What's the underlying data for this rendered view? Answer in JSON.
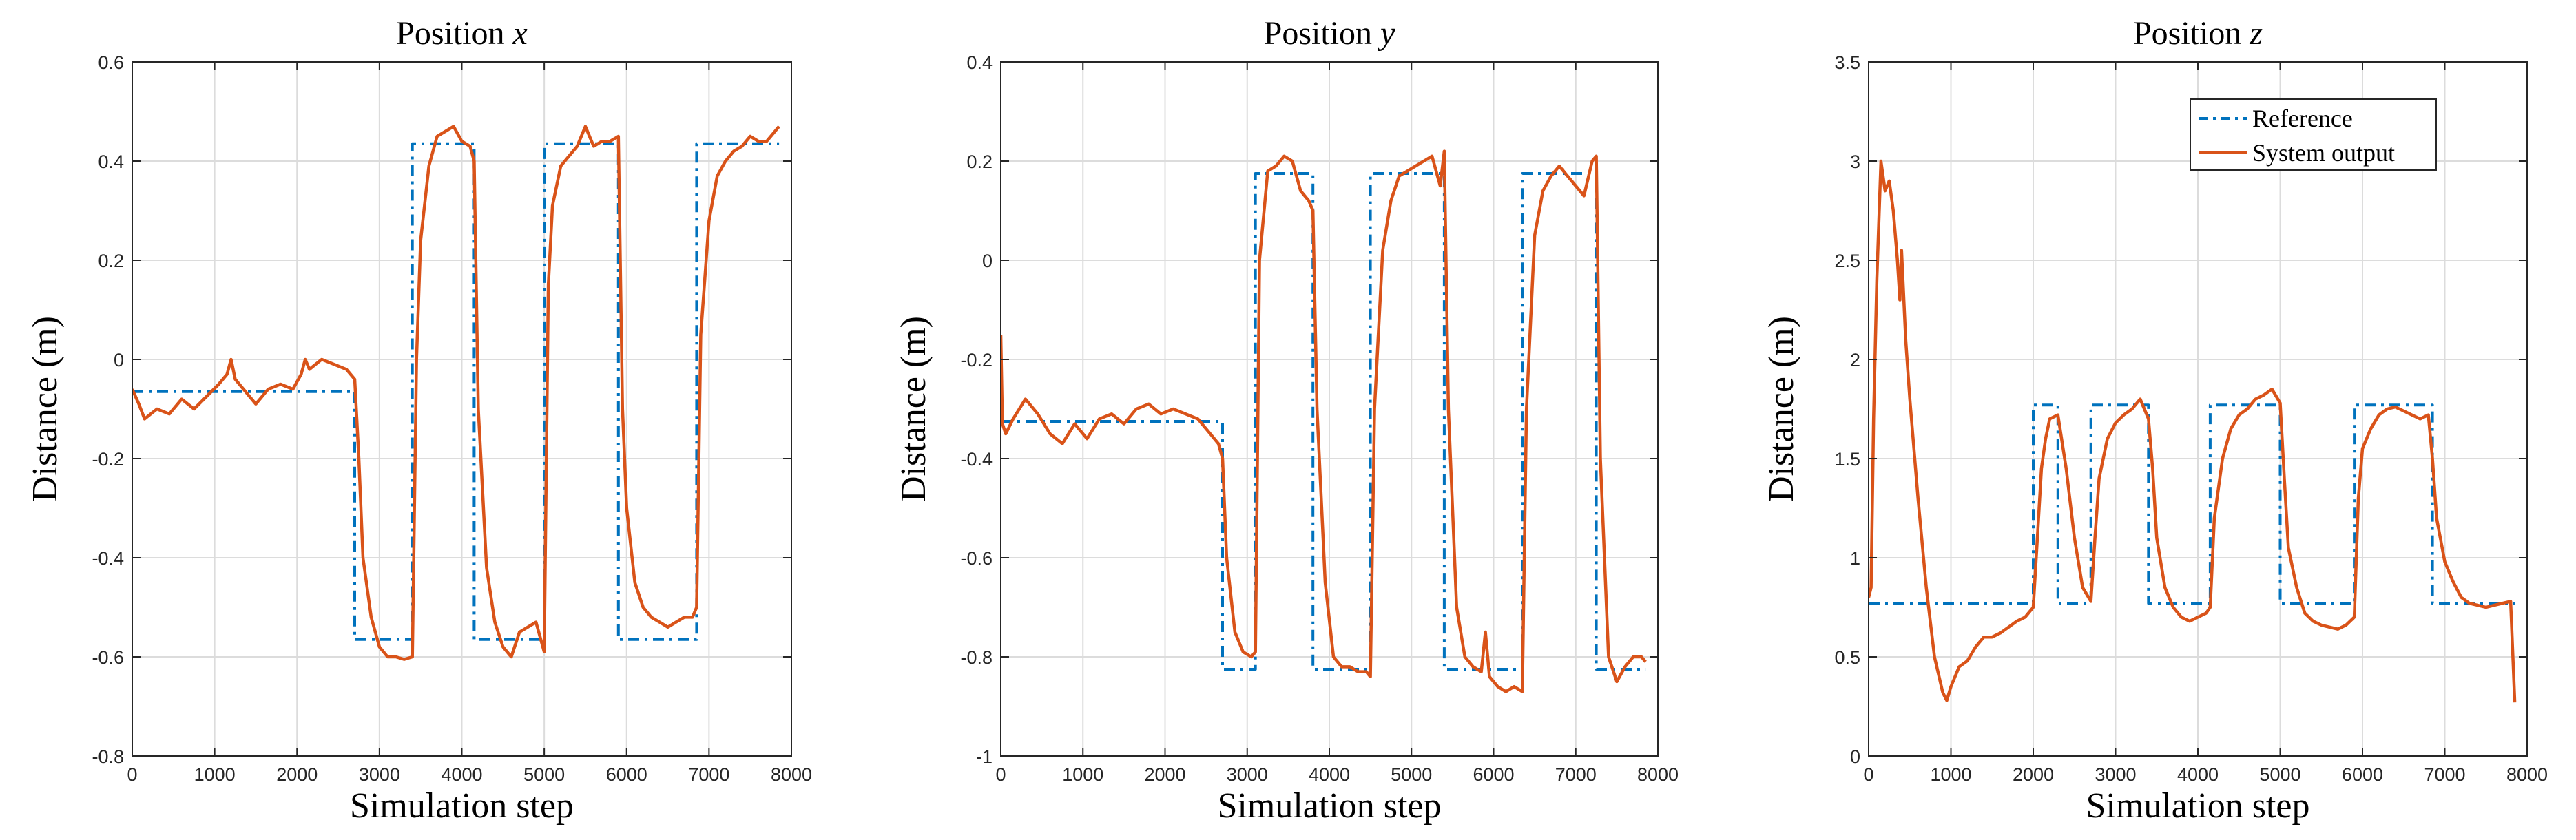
{
  "colors": {
    "reference": "#0072BD",
    "output": "#D95319",
    "grid": "#dcdcdc",
    "axis": "#262626"
  },
  "legend": {
    "placement": "top-right",
    "chart_index": 2
  },
  "chart_data": [
    {
      "type": "line",
      "title_main": "Position ",
      "title_var": "x",
      "xlabel": "Simulation step",
      "ylabel": "Distance (m)",
      "xlim": [
        0,
        8000
      ],
      "ylim": [
        -0.8,
        0.6
      ],
      "xticks": [
        0,
        1000,
        2000,
        3000,
        4000,
        5000,
        6000,
        7000,
        8000
      ],
      "yticks": [
        -0.8,
        -0.6,
        -0.4,
        -0.2,
        0,
        0.2,
        0.4,
        0.6
      ],
      "ytick_labels": [
        "-0.8",
        "-0.6",
        "-0.4",
        "-0.2",
        "0",
        "0.2",
        "0.4",
        "0.6"
      ],
      "grid": true,
      "series": [
        {
          "name": "Reference",
          "style": "dashdot",
          "x": [
            0,
            2700,
            2700,
            3400,
            3400,
            4150,
            4150,
            5000,
            5000,
            5900,
            5900,
            6850,
            6850,
            7850
          ],
          "y": [
            -0.065,
            -0.065,
            -0.565,
            -0.565,
            0.435,
            0.435,
            -0.565,
            -0.565,
            0.435,
            0.435,
            -0.565,
            -0.565,
            0.435,
            0.435
          ]
        },
        {
          "name": "System output",
          "style": "solid",
          "x": [
            0,
            80,
            150,
            300,
            450,
            600,
            750,
            900,
            1050,
            1150,
            1200,
            1250,
            1350,
            1500,
            1650,
            1800,
            1950,
            2050,
            2100,
            2150,
            2300,
            2450,
            2600,
            2700,
            2750,
            2800,
            2900,
            3000,
            3100,
            3200,
            3300,
            3400,
            3450,
            3500,
            3600,
            3700,
            3800,
            3900,
            4000,
            4100,
            4150,
            4200,
            4300,
            4400,
            4500,
            4600,
            4700,
            4800,
            4900,
            5000,
            5050,
            5100,
            5200,
            5300,
            5400,
            5500,
            5600,
            5700,
            5800,
            5900,
            5950,
            6000,
            6100,
            6200,
            6300,
            6400,
            6500,
            6600,
            6700,
            6800,
            6850,
            6900,
            7000,
            7100,
            7200,
            7300,
            7400,
            7500,
            7600,
            7700,
            7800,
            7850
          ],
          "y": [
            -0.06,
            -0.09,
            -0.12,
            -0.1,
            -0.11,
            -0.08,
            -0.1,
            -0.075,
            -0.05,
            -0.03,
            0.0,
            -0.04,
            -0.06,
            -0.09,
            -0.06,
            -0.05,
            -0.06,
            -0.03,
            0.0,
            -0.02,
            0.0,
            -0.01,
            -0.02,
            -0.04,
            -0.2,
            -0.4,
            -0.52,
            -0.58,
            -0.6,
            -0.6,
            -0.605,
            -0.6,
            0.0,
            0.24,
            0.39,
            0.45,
            0.46,
            0.47,
            0.44,
            0.43,
            0.4,
            -0.1,
            -0.42,
            -0.53,
            -0.58,
            -0.6,
            -0.55,
            -0.54,
            -0.53,
            -0.59,
            0.15,
            0.31,
            0.39,
            0.41,
            0.43,
            0.47,
            0.43,
            0.44,
            0.44,
            0.45,
            -0.1,
            -0.3,
            -0.45,
            -0.5,
            -0.52,
            -0.53,
            -0.54,
            -0.53,
            -0.52,
            -0.52,
            -0.5,
            0.05,
            0.28,
            0.37,
            0.4,
            0.42,
            0.43,
            0.45,
            0.44,
            0.44,
            0.46,
            0.47
          ]
        }
      ]
    },
    {
      "type": "line",
      "title_main": "Position ",
      "title_var": "y",
      "xlabel": "Simulation step",
      "ylabel": "Distance (m)",
      "xlim": [
        0,
        8000
      ],
      "ylim": [
        -1,
        0.4
      ],
      "xticks": [
        0,
        1000,
        2000,
        3000,
        4000,
        5000,
        6000,
        7000,
        8000
      ],
      "yticks": [
        -1,
        -0.8,
        -0.6,
        -0.4,
        -0.2,
        0,
        0.2,
        0.4
      ],
      "ytick_labels": [
        "-1",
        "-0.8",
        "-0.6",
        "-0.4",
        "-0.2",
        "0",
        "0.2",
        "0.4"
      ],
      "grid": true,
      "series": [
        {
          "name": "Reference",
          "style": "dashdot",
          "x": [
            0,
            2700,
            2700,
            3100,
            3100,
            3800,
            3800,
            4500,
            4500,
            5400,
            5400,
            6350,
            6350,
            7250,
            7250,
            7850
          ],
          "y": [
            -0.325,
            -0.325,
            -0.825,
            -0.825,
            0.175,
            0.175,
            -0.825,
            -0.825,
            0.175,
            0.175,
            -0.825,
            -0.825,
            0.175,
            0.175,
            -0.825,
            -0.825
          ]
        },
        {
          "name": "System output",
          "style": "solid",
          "x": [
            0,
            20,
            60,
            150,
            300,
            450,
            600,
            750,
            900,
            1050,
            1200,
            1350,
            1500,
            1650,
            1800,
            1950,
            2100,
            2250,
            2400,
            2550,
            2650,
            2700,
            2750,
            2850,
            2950,
            3050,
            3100,
            3150,
            3250,
            3350,
            3450,
            3550,
            3650,
            3750,
            3800,
            3850,
            3950,
            4050,
            4150,
            4250,
            4350,
            4450,
            4500,
            4550,
            4650,
            4750,
            4850,
            4950,
            5050,
            5150,
            5250,
            5350,
            5400,
            5450,
            5550,
            5650,
            5750,
            5850,
            5900,
            5950,
            6050,
            6150,
            6250,
            6350,
            6400,
            6500,
            6600,
            6700,
            6800,
            6900,
            7000,
            7100,
            7200,
            7250,
            7300,
            7400,
            7500,
            7600,
            7700,
            7800,
            7850
          ],
          "y": [
            -0.15,
            -0.33,
            -0.35,
            -0.32,
            -0.28,
            -0.31,
            -0.35,
            -0.37,
            -0.33,
            -0.36,
            -0.32,
            -0.31,
            -0.33,
            -0.3,
            -0.29,
            -0.31,
            -0.3,
            -0.31,
            -0.32,
            -0.35,
            -0.37,
            -0.4,
            -0.6,
            -0.75,
            -0.79,
            -0.8,
            -0.79,
            0.0,
            0.18,
            0.19,
            0.21,
            0.2,
            0.14,
            0.12,
            0.1,
            -0.3,
            -0.65,
            -0.8,
            -0.82,
            -0.82,
            -0.83,
            -0.83,
            -0.84,
            -0.3,
            0.02,
            0.12,
            0.17,
            0.18,
            0.19,
            0.2,
            0.21,
            0.15,
            0.22,
            -0.3,
            -0.7,
            -0.8,
            -0.82,
            -0.83,
            -0.75,
            -0.84,
            -0.86,
            -0.87,
            -0.86,
            -0.87,
            -0.3,
            0.05,
            0.14,
            0.17,
            0.19,
            0.17,
            0.15,
            0.13,
            0.2,
            0.21,
            -0.4,
            -0.8,
            -0.85,
            -0.82,
            -0.8,
            -0.8,
            -0.81
          ]
        }
      ]
    },
    {
      "type": "line",
      "title_main": "Position ",
      "title_var": "z",
      "xlabel": "Simulation step",
      "ylabel": "Distance (m)",
      "xlim": [
        0,
        8000
      ],
      "ylim": [
        0,
        3.5
      ],
      "xticks": [
        0,
        1000,
        2000,
        3000,
        4000,
        5000,
        6000,
        7000,
        8000
      ],
      "yticks": [
        0,
        0.5,
        1,
        1.5,
        2,
        2.5,
        3,
        3.5
      ],
      "ytick_labels": [
        "0",
        "0.5",
        "1",
        "1.5",
        "2",
        "2.5",
        "3",
        "3.5"
      ],
      "grid": true,
      "series": [
        {
          "name": "Reference",
          "style": "dashdot",
          "x": [
            0,
            2000,
            2000,
            2300,
            2300,
            2700,
            2700,
            3400,
            3400,
            4150,
            4150,
            5000,
            5000,
            5900,
            5900,
            6850,
            6850,
            7850
          ],
          "y": [
            0.77,
            0.77,
            1.77,
            1.77,
            0.77,
            0.77,
            1.77,
            1.77,
            0.77,
            0.77,
            1.77,
            1.77,
            0.77,
            0.77,
            1.77,
            1.77,
            0.77,
            0.77
          ]
        },
        {
          "name": "System output",
          "style": "solid",
          "x": [
            0,
            30,
            60,
            100,
            150,
            200,
            250,
            300,
            350,
            380,
            400,
            450,
            500,
            600,
            700,
            800,
            900,
            950,
            1000,
            1100,
            1200,
            1300,
            1400,
            1500,
            1600,
            1700,
            1800,
            1900,
            2000,
            2050,
            2100,
            2150,
            2200,
            2300,
            2400,
            2500,
            2600,
            2700,
            2750,
            2800,
            2900,
            3000,
            3100,
            3200,
            3300,
            3400,
            3450,
            3500,
            3600,
            3700,
            3800,
            3900,
            4000,
            4100,
            4150,
            4200,
            4300,
            4400,
            4500,
            4600,
            4700,
            4800,
            4900,
            5000,
            5050,
            5100,
            5200,
            5300,
            5400,
            5500,
            5600,
            5700,
            5800,
            5900,
            5950,
            6000,
            6100,
            6200,
            6300,
            6400,
            6500,
            6600,
            6700,
            6800,
            6850,
            6900,
            7000,
            7100,
            7200,
            7300,
            7400,
            7500,
            7600,
            7700,
            7800,
            7850
          ],
          "y": [
            0.8,
            0.85,
            1.7,
            2.4,
            3.0,
            2.85,
            2.9,
            2.75,
            2.5,
            2.3,
            2.55,
            2.1,
            1.8,
            1.3,
            0.85,
            0.5,
            0.32,
            0.28,
            0.35,
            0.45,
            0.48,
            0.55,
            0.6,
            0.6,
            0.62,
            0.65,
            0.68,
            0.7,
            0.75,
            1.1,
            1.45,
            1.6,
            1.7,
            1.72,
            1.45,
            1.1,
            0.85,
            0.78,
            1.1,
            1.4,
            1.6,
            1.68,
            1.72,
            1.75,
            1.8,
            1.7,
            1.45,
            1.1,
            0.85,
            0.75,
            0.7,
            0.68,
            0.7,
            0.72,
            0.75,
            1.2,
            1.5,
            1.65,
            1.72,
            1.75,
            1.8,
            1.82,
            1.85,
            1.78,
            1.4,
            1.05,
            0.85,
            0.72,
            0.68,
            0.66,
            0.65,
            0.64,
            0.66,
            0.7,
            1.3,
            1.55,
            1.65,
            1.72,
            1.75,
            1.76,
            1.74,
            1.72,
            1.7,
            1.72,
            1.5,
            1.2,
            0.98,
            0.88,
            0.8,
            0.77,
            0.76,
            0.75,
            0.76,
            0.77,
            0.78,
            0.27
          ]
        }
      ]
    }
  ]
}
